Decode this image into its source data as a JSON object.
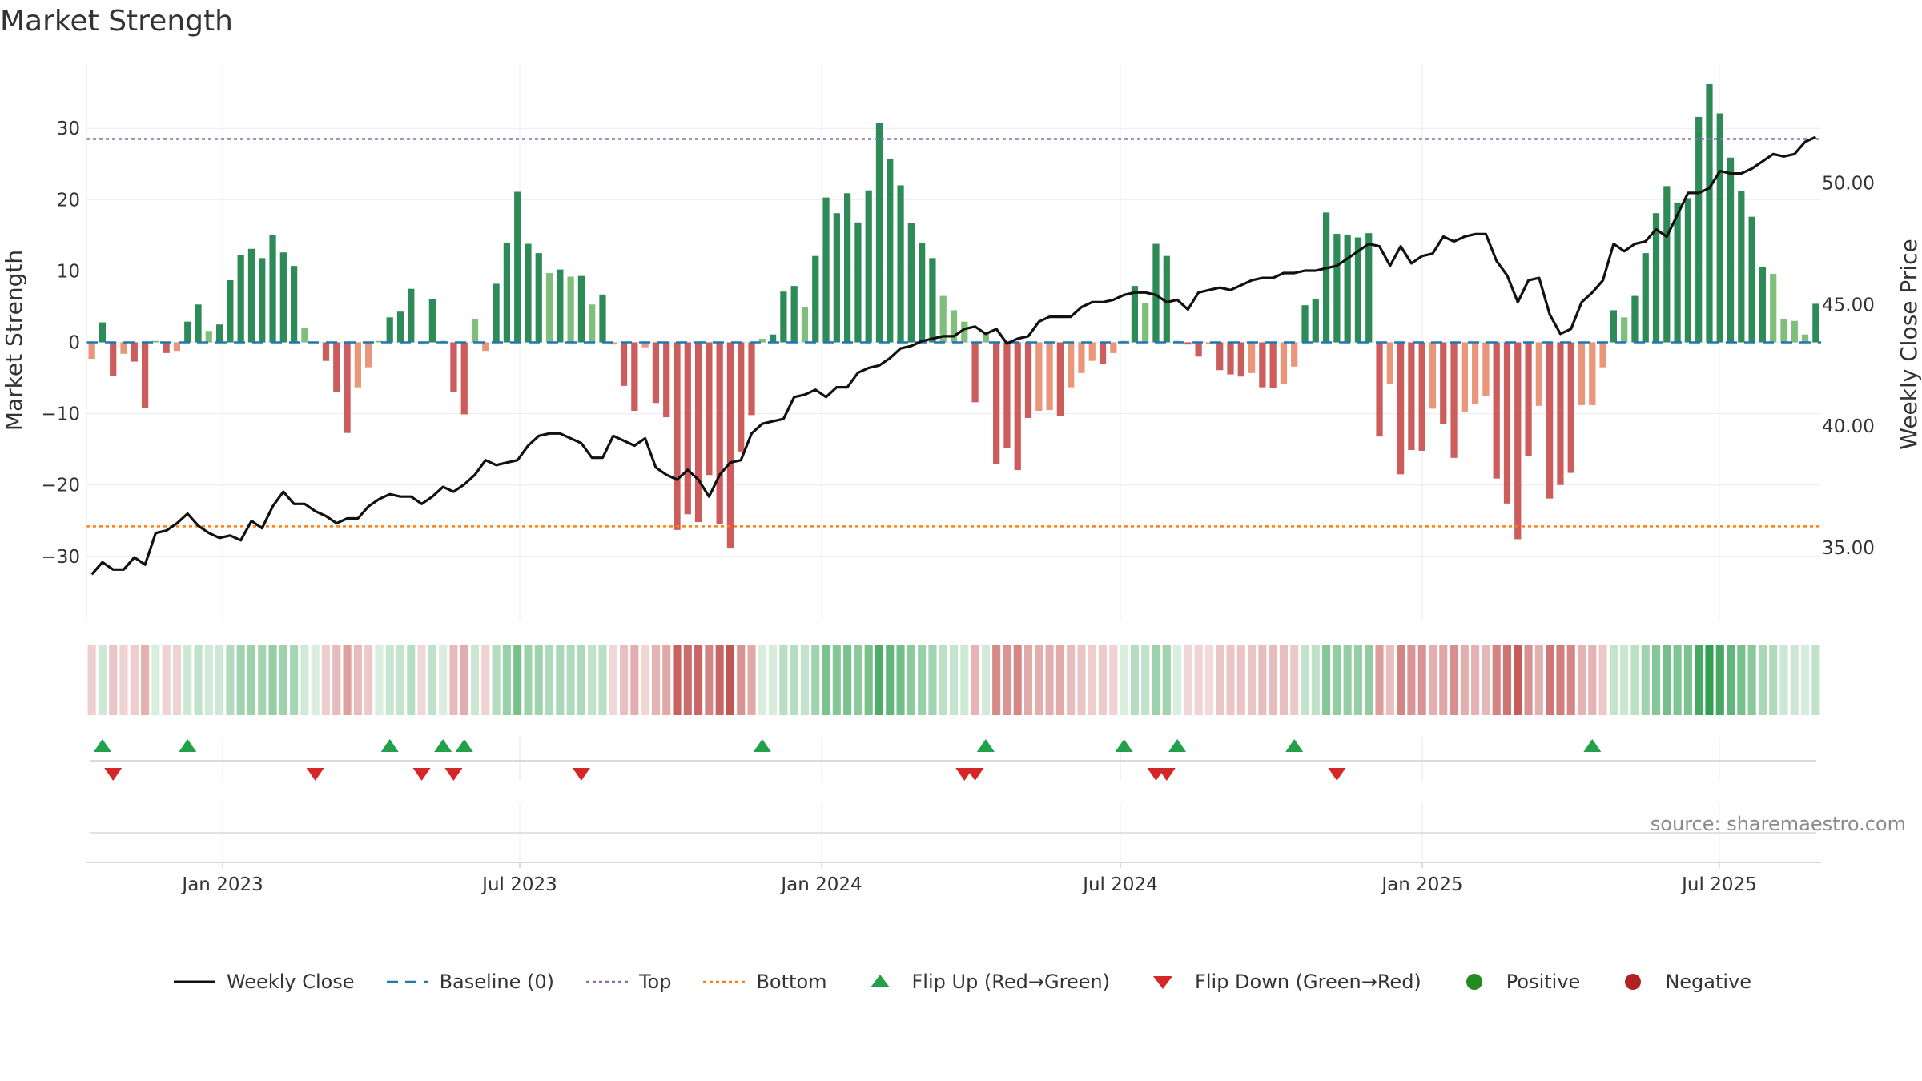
{
  "title": "Market Strength",
  "source": "source: sharemaestro.com",
  "colors": {
    "strong_green": "#2e8b57",
    "light_green": "#7fbf7b",
    "strong_red": "#cd5c5c",
    "light_red": "#e9967a",
    "close_line": "#111111",
    "baseline": "#1f77b4",
    "top": "#9467bd",
    "bottom": "#ff7f0e",
    "flip_up": "#22a04b",
    "flip_down": "#d62728",
    "positive": "#228b22",
    "negative": "#b22222"
  },
  "legend": [
    {
      "key": "close",
      "label": "Weekly Close"
    },
    {
      "key": "baseline",
      "label": "Baseline (0)"
    },
    {
      "key": "top",
      "label": "Top"
    },
    {
      "key": "bottom",
      "label": "Bottom"
    },
    {
      "key": "flip_up",
      "label": "Flip Up (Red→Green)"
    },
    {
      "key": "flip_down",
      "label": "Flip Down (Green→Red)"
    },
    {
      "key": "positive",
      "label": "Positive"
    },
    {
      "key": "negative",
      "label": "Negative"
    }
  ],
  "chart_data": {
    "type": "bar",
    "title": "Market Strength",
    "ylabel_left": "Market Strength",
    "ylabel_right": "Weekly Close Price",
    "ylim_left": [
      -39,
      39
    ],
    "yticks_left": [
      30,
      20,
      10,
      0,
      -10,
      -20,
      -30
    ],
    "yticks_left_labels": [
      "30",
      "20",
      "10",
      "0",
      "−10",
      "−20",
      "−30"
    ],
    "ylim_right": [
      32,
      54.9
    ],
    "yticks_right": [
      50,
      45,
      40,
      35
    ],
    "yticks_right_labels": [
      "50.00",
      "45.00",
      "40.00",
      "35.00"
    ],
    "x_start": "2022-10-10",
    "x_end": "2025-09-01",
    "xticks": [
      "2023-01-01",
      "2023-07-01",
      "2024-01-01",
      "2024-07-01",
      "2025-01-01",
      "2025-07-01"
    ],
    "xtick_labels": [
      "Jan 2023",
      "Jul 2023",
      "Jan 2024",
      "Jul 2024",
      "Jan 2025",
      "Jul 2025"
    ],
    "top_line": 28.5,
    "bottom_line": -25.8,
    "baseline": 0,
    "strength": [
      -2.3,
      2.8,
      -4.7,
      -1.6,
      -2.7,
      -9.2,
      0.2,
      -1.5,
      -1.2,
      2.9,
      5.3,
      1.6,
      2.5,
      8.7,
      12.2,
      13.1,
      11.8,
      15,
      12.6,
      10.7,
      2,
      0.1,
      -2.6,
      -7,
      -12.7,
      -6.3,
      -3.5,
      0.2,
      3.5,
      4.3,
      7.5,
      -0.3,
      6.1,
      0.2,
      -7,
      -10.1,
      3.2,
      -1.2,
      8.2,
      13.9,
      21.1,
      13.8,
      12.5,
      9.7,
      10.2,
      9.2,
      9.3,
      5.3,
      6.7,
      -0.3,
      -6.1,
      -9.6,
      -0.7,
      -8.5,
      -10.5,
      -26.3,
      -24.1,
      -25.2,
      -18.6,
      -25.5,
      -28.8,
      -15.3,
      -10.2,
      0.5,
      1.1,
      7.1,
      7.9,
      4.9,
      12.1,
      20.3,
      18.1,
      20.9,
      16.8,
      21.3,
      30.8,
      25.7,
      22,
      16.7,
      13.9,
      11.8,
      6.5,
      4.5,
      2.9,
      -8.4,
      1.3,
      -17.1,
      -14.8,
      -17.9,
      -10.6,
      -9.6,
      -9.5,
      -10.3,
      -6.3,
      -4.3,
      -2.6,
      -3,
      -1.5,
      0.2,
      7.9,
      5.5,
      13.8,
      12.1,
      0.2,
      -0.3,
      -2,
      -0.2,
      -3.9,
      -4.5,
      -4.8,
      -4.3,
      -6.3,
      -6.4,
      -5.9,
      -3.4,
      5.2,
      6,
      18.2,
      15.2,
      15.1,
      14.7,
      15.3,
      -13.2,
      -5.9,
      -18.5,
      -15.1,
      -15.2,
      -9.3,
      -11.5,
      -16.2,
      -9.7,
      -8.7,
      -7.5,
      -19.1,
      -22.6,
      -27.6,
      -16,
      -8.9,
      -21.9,
      -20,
      -18.3,
      -8.8,
      -8.8,
      -3.5,
      4.5,
      3.5,
      6.5,
      12.5,
      18.1,
      21.9,
      19.6,
      20.2,
      31.6,
      36.2,
      32.1,
      25.9,
      21.2,
      17.6,
      10.6,
      9.6,
      3.2,
      3,
      1.1,
      5.4
    ],
    "close": [
      33.9,
      34.4,
      34.1,
      34.1,
      34.6,
      34.3,
      35.6,
      35.7,
      36,
      36.4,
      35.9,
      35.6,
      35.4,
      35.5,
      35.3,
      36.1,
      35.8,
      36.7,
      37.3,
      36.8,
      36.8,
      36.5,
      36.3,
      36,
      36.2,
      36.2,
      36.7,
      37,
      37.2,
      37.1,
      37.1,
      36.8,
      37.1,
      37.5,
      37.3,
      37.6,
      38,
      38.6,
      38.4,
      38.5,
      38.6,
      39.2,
      39.6,
      39.7,
      39.7,
      39.5,
      39.3,
      38.7,
      38.7,
      39.6,
      39.4,
      39.2,
      39.5,
      38.3,
      38,
      37.8,
      38.2,
      37.8,
      37.1,
      38,
      38.5,
      38.6,
      39.7,
      40.1,
      40.2,
      40.3,
      41.2,
      41.3,
      41.5,
      41.2,
      41.6,
      41.6,
      42.2,
      42.4,
      42.5,
      42.8,
      43.2,
      43.3,
      43.5,
      43.6,
      43.7,
      43.7,
      44,
      44.1,
      43.8,
      44,
      43.4,
      43.6,
      43.7,
      44.3,
      44.5,
      44.5,
      44.5,
      44.9,
      45.1,
      45.1,
      45.2,
      45.4,
      45.5,
      45.5,
      45.4,
      45.1,
      45.2,
      44.8,
      45.5,
      45.6,
      45.7,
      45.6,
      45.8,
      46,
      46.1,
      46.1,
      46.3,
      46.3,
      46.4,
      46.4,
      46.5,
      46.6,
      46.9,
      47.2,
      47.5,
      47.4,
      46.6,
      47.4,
      46.7,
      47,
      47.1,
      47.8,
      47.6,
      47.8,
      47.9,
      47.9,
      46.8,
      46.2,
      45.1,
      46,
      46.1,
      44.6,
      43.8,
      44,
      45.1,
      45.5,
      46,
      47.5,
      47.2,
      47.5,
      47.6,
      48.1,
      47.8,
      48.7,
      49.6,
      49.6,
      49.8,
      50.5,
      50.4,
      50.4,
      50.6,
      50.9,
      51.2,
      51.1,
      51.2,
      51.7,
      51.9
    ],
    "flip_up_index": [
      1,
      9,
      28,
      33,
      35,
      63,
      84,
      97,
      102,
      113,
      141
    ],
    "flip_down_index": [
      2,
      21,
      31,
      34,
      46,
      82,
      83,
      100,
      101,
      117
    ],
    "series": [
      {
        "name": "Weekly Close",
        "type": "line"
      },
      {
        "name": "Baseline (0)",
        "type": "line"
      },
      {
        "name": "Top",
        "type": "line"
      },
      {
        "name": "Bottom",
        "type": "line"
      },
      {
        "name": "Flip Up (Red→Green)",
        "type": "marker"
      },
      {
        "name": "Flip Down (Green→Red)",
        "type": "marker"
      },
      {
        "name": "Positive",
        "type": "marker"
      },
      {
        "name": "Negative",
        "type": "marker"
      }
    ]
  }
}
